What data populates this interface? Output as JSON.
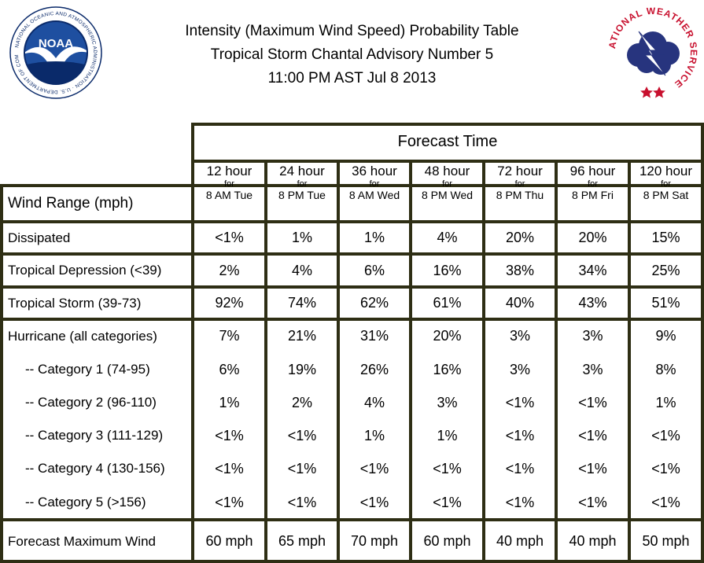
{
  "title_lines": [
    "Intensity (Maximum Wind Speed) Probability Table",
    "Tropical Storm Chantal Advisory Number 5",
    "11:00 PM AST Jul 8 2013"
  ],
  "logos": {
    "noaa": {
      "name": "noaa-logo",
      "text": "NOAA",
      "ring_text": "NATIONAL OCEANIC AND ATMOSPHERIC ADMINISTRATION · U.S. DEPARTMENT OF COMMERCE",
      "colors": {
        "ring": "#ffffff",
        "sky": "#1e4fa0",
        "bird": "#ffffff",
        "sea": "#0a2a6a"
      }
    },
    "nws": {
      "name": "nws-logo",
      "ring_text": "NATIONAL WEATHER SERVICE",
      "colors": {
        "text": "#c8102e",
        "cloud": "#27347e",
        "bolt": "#ffffff",
        "star": "#c8102e"
      }
    }
  },
  "table": {
    "forecast_time_label": "Forecast Time",
    "row_header_label": "Wind Range (mph)",
    "columns": [
      {
        "hours": "12 hour",
        "for": "for",
        "when": "8 AM Tue"
      },
      {
        "hours": "24 hour",
        "for": "for",
        "when": "8 PM Tue"
      },
      {
        "hours": "36 hour",
        "for": "for",
        "when": "8 AM Wed"
      },
      {
        "hours": "48 hour",
        "for": "for",
        "when": "8 PM Wed"
      },
      {
        "hours": "72 hour",
        "for": "for",
        "when": "8 PM Thu"
      },
      {
        "hours": "96 hour",
        "for": "for",
        "when": "8 PM Fri"
      },
      {
        "hours": "120 hour",
        "for": "for",
        "when": "8 PM Sat"
      }
    ],
    "rows": [
      {
        "label": "Dissipated",
        "values": [
          "<1%",
          "1%",
          "1%",
          "4%",
          "20%",
          "20%",
          "15%"
        ]
      },
      {
        "label": "Tropical Depression (<39)",
        "values": [
          "2%",
          "4%",
          "6%",
          "16%",
          "38%",
          "34%",
          "25%"
        ]
      },
      {
        "label": "Tropical Storm (39-73)",
        "values": [
          "92%",
          "74%",
          "62%",
          "61%",
          "40%",
          "43%",
          "51%"
        ]
      },
      {
        "label": "Hurricane (all categories)",
        "values": [
          "7%",
          "21%",
          "31%",
          "20%",
          "3%",
          "3%",
          "9%"
        ]
      },
      {
        "label": "-- Category 1 (74-95)",
        "values": [
          "6%",
          "19%",
          "26%",
          "16%",
          "3%",
          "3%",
          "8%"
        ]
      },
      {
        "label": "-- Category 2 (96-110)",
        "values": [
          "1%",
          "2%",
          "4%",
          "3%",
          "<1%",
          "<1%",
          "1%"
        ]
      },
      {
        "label": "-- Category 3 (111-129)",
        "values": [
          "<1%",
          "<1%",
          "1%",
          "1%",
          "<1%",
          "<1%",
          "<1%"
        ]
      },
      {
        "label": "-- Category 4 (130-156)",
        "values": [
          "<1%",
          "<1%",
          "<1%",
          "<1%",
          "<1%",
          "<1%",
          "<1%"
        ]
      },
      {
        "label": "-- Category 5 (>156)",
        "values": [
          "<1%",
          "<1%",
          "<1%",
          "<1%",
          "<1%",
          "<1%",
          "<1%"
        ]
      },
      {
        "label": "Forecast Maximum Wind",
        "values": [
          "60 mph",
          "65 mph",
          "70 mph",
          "60 mph",
          "40 mph",
          "40 mph",
          "50 mph"
        ]
      }
    ],
    "border_color": "#2e2e14"
  }
}
